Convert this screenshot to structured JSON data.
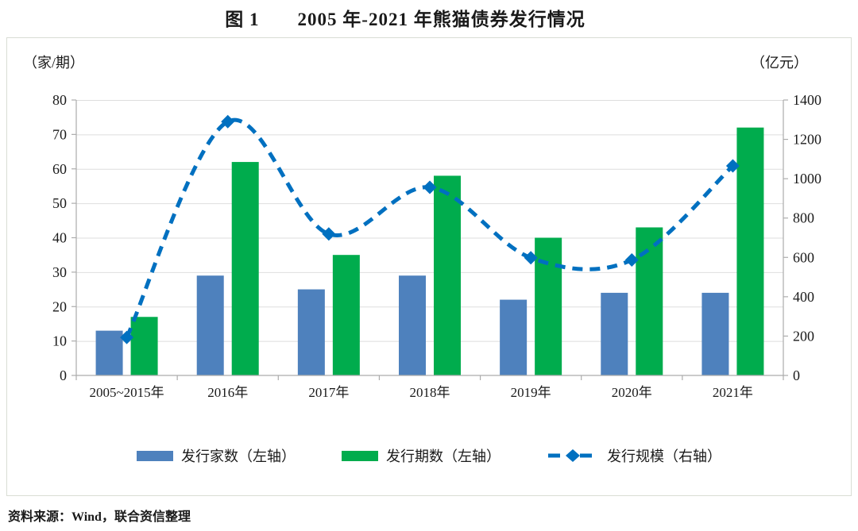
{
  "chart_data": {
    "type": "bar",
    "title": "图 1　　2005 年-2021 年熊猫债券发行情况",
    "categories": [
      "2005~2015年",
      "2016年",
      "2017年",
      "2018年",
      "2019年",
      "2020年",
      "2021年"
    ],
    "series": [
      {
        "name": "发行家数（左轴）",
        "type": "bar",
        "axis": "left",
        "color": "#4E81BD",
        "values": [
          13,
          29,
          25,
          29,
          22,
          24,
          24
        ]
      },
      {
        "name": "发行期数（左轴）",
        "type": "bar",
        "axis": "left",
        "color": "#00AC4D",
        "values": [
          17,
          62,
          35,
          58,
          40,
          43,
          72
        ]
      },
      {
        "name": "发行规模（右轴）",
        "type": "line",
        "axis": "right",
        "color": "#0070C0",
        "line_style": "dashed",
        "marker": "diamond",
        "values": [
          193,
          1290,
          719,
          956,
          598,
          587,
          1065
        ]
      }
    ],
    "left_axis": {
      "label": "（家/期）",
      "min": 0,
      "max": 80,
      "step": 10,
      "ticks": [
        0,
        10,
        20,
        30,
        40,
        50,
        60,
        70,
        80
      ]
    },
    "right_axis": {
      "label": "（亿元）",
      "min": 0,
      "max": 1400,
      "step": 200,
      "ticks": [
        0,
        200,
        400,
        600,
        800,
        1000,
        1200,
        1400
      ]
    },
    "grid": true,
    "legend_position": "bottom",
    "source_note": "资料来源：Wind，联合资信整理",
    "colors": {
      "grid": "#DEDEDE",
      "axis": "#ACACAC",
      "text": "#1a1a1a"
    }
  }
}
